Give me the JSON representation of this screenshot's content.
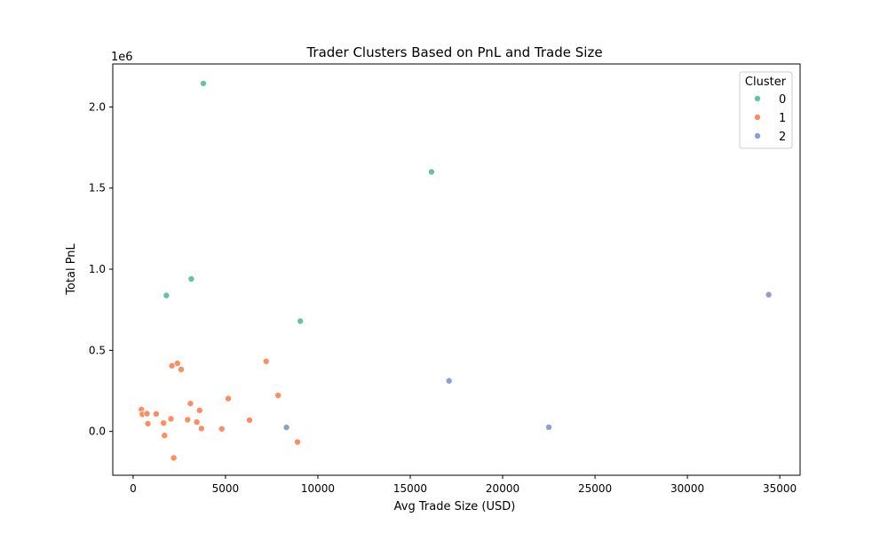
{
  "chart_data": {
    "type": "scatter",
    "title": "Trader Clusters Based on PnL and Trade Size",
    "xlabel": "Avg Trade Size (USD)",
    "ylabel": "Total PnL",
    "y_offset_label": "1e6",
    "xlim": [
      -1100,
      36100
    ],
    "ylim": [
      -270000,
      2265000
    ],
    "x_ticks": [
      0,
      5000,
      10000,
      15000,
      20000,
      25000,
      30000,
      35000
    ],
    "x_tick_labels": [
      "0",
      "5000",
      "10000",
      "15000",
      "20000",
      "25000",
      "30000",
      "35000"
    ],
    "y_ticks": [
      0,
      500000,
      1000000,
      1500000,
      2000000
    ],
    "y_tick_labels": [
      "0.0",
      "0.5",
      "1.0",
      "1.5",
      "2.0"
    ],
    "grid": false,
    "legend": {
      "title": "Cluster",
      "position": "top-right"
    },
    "series": [
      {
        "name": "0",
        "color": "#66c2a5",
        "points": [
          [
            3800,
            2145000
          ],
          [
            16150,
            1600000
          ],
          [
            3150,
            940000
          ],
          [
            1800,
            838000
          ],
          [
            9050,
            680000
          ]
        ]
      },
      {
        "name": "1",
        "color": "#fc8d62",
        "points": [
          [
            7200,
            432000
          ],
          [
            2400,
            420000
          ],
          [
            2100,
            405000
          ],
          [
            2600,
            382000
          ],
          [
            7850,
            222000
          ],
          [
            5150,
            203000
          ],
          [
            3100,
            172000
          ],
          [
            450,
            135000
          ],
          [
            3600,
            130000
          ],
          [
            500,
            106000
          ],
          [
            750,
            110000
          ],
          [
            1250,
            108000
          ],
          [
            2050,
            78000
          ],
          [
            2950,
            72000
          ],
          [
            6300,
            70000
          ],
          [
            3450,
            58000
          ],
          [
            1650,
            52000
          ],
          [
            800,
            48000
          ],
          [
            3700,
            18000
          ],
          [
            4800,
            16000
          ],
          [
            1700,
            -25000
          ],
          [
            8900,
            -65000
          ],
          [
            2200,
            -163000
          ]
        ]
      },
      {
        "name": "2",
        "color": "#8da0cb",
        "points": [
          [
            34400,
            843000
          ],
          [
            17100,
            312000
          ],
          [
            8300,
            25000
          ],
          [
            22500,
            26000
          ]
        ]
      }
    ]
  }
}
